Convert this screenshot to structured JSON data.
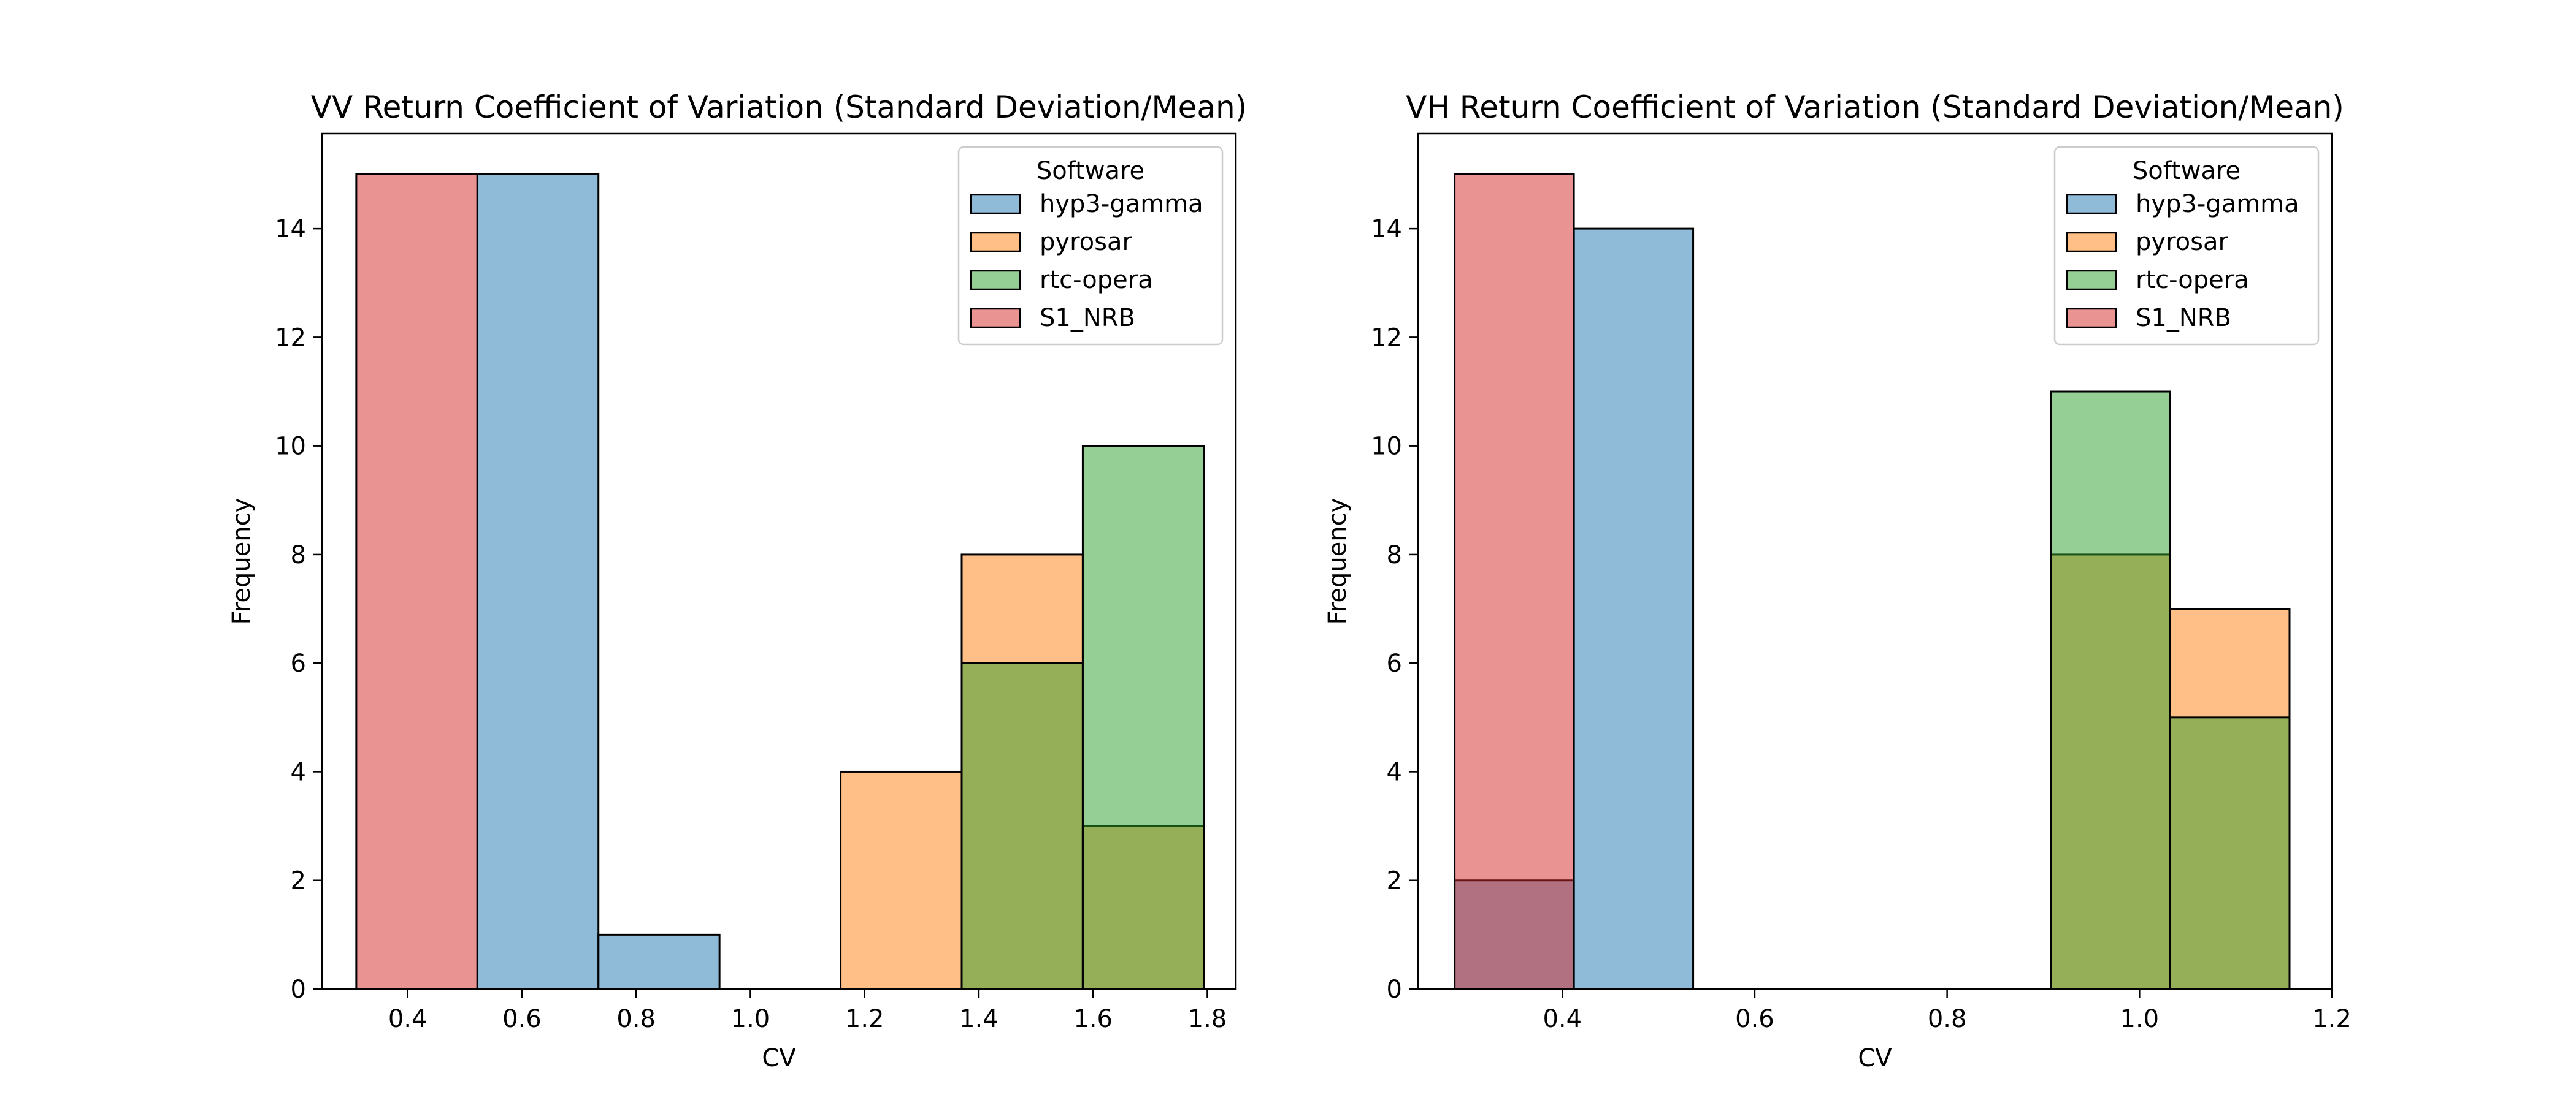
{
  "chart_data": [
    {
      "type": "histogram",
      "title": "VV Return Coefficient of Variation (Standard Deviation/Mean)",
      "xlabel": "CV",
      "ylabel": "Frequency",
      "xlim": [
        0.25,
        1.85
      ],
      "ylim": [
        0,
        15.75
      ],
      "xticks": [
        0.4,
        0.6,
        0.8,
        1.0,
        1.2,
        1.4,
        1.6,
        1.8
      ],
      "xtick_labels": [
        "0.4",
        "0.6",
        "0.8",
        "1.0",
        "1.2",
        "1.4",
        "1.6",
        "1.8"
      ],
      "yticks": [
        0,
        2,
        4,
        6,
        8,
        10,
        12,
        14
      ],
      "ytick_labels": [
        "0",
        "2",
        "4",
        "6",
        "8",
        "10",
        "12",
        "14"
      ],
      "bin_edges": [
        0.31,
        0.522,
        0.734,
        0.946,
        1.158,
        1.37,
        1.582,
        1.794
      ],
      "legend": {
        "title": "Software",
        "position": "upper right",
        "entries": [
          "hyp3-gamma",
          "pyrosar",
          "rtc-opera",
          "S1_NRB"
        ]
      },
      "series": [
        {
          "name": "hyp3-gamma",
          "color": "#1f77b4",
          "counts": [
            0,
            15,
            1,
            0,
            0,
            0,
            0
          ]
        },
        {
          "name": "pyrosar",
          "color": "#ff7f0e",
          "counts": [
            0,
            0,
            0,
            0,
            4,
            8,
            3
          ]
        },
        {
          "name": "rtc-opera",
          "color": "#2ca02c",
          "counts": [
            0,
            0,
            0,
            0,
            0,
            6,
            10
          ]
        },
        {
          "name": "S1_NRB",
          "color": "#d62728",
          "counts": [
            15,
            0,
            0,
            0,
            0,
            0,
            0
          ]
        }
      ]
    },
    {
      "type": "histogram",
      "title": "VH Return Coefficient of Variation (Standard Deviation/Mean)",
      "xlabel": "CV",
      "ylabel": "Frequency",
      "xlim": [
        0.25,
        1.2
      ],
      "ylim": [
        0,
        15.75
      ],
      "xticks": [
        0.4,
        0.6,
        0.8,
        1.0,
        1.2
      ],
      "xtick_labels": [
        "0.4",
        "0.6",
        "0.8",
        "1.0",
        "1.2"
      ],
      "yticks": [
        0,
        2,
        4,
        6,
        8,
        10,
        12,
        14
      ],
      "ytick_labels": [
        "0",
        "2",
        "4",
        "6",
        "8",
        "10",
        "12",
        "14"
      ],
      "bin_edges": [
        0.288,
        0.412,
        0.536,
        0.66,
        0.784,
        0.908,
        1.032,
        1.156
      ],
      "legend": {
        "title": "Software",
        "position": "upper right",
        "entries": [
          "hyp3-gamma",
          "pyrosar",
          "rtc-opera",
          "S1_NRB"
        ]
      },
      "series": [
        {
          "name": "hyp3-gamma",
          "color": "#1f77b4",
          "counts": [
            2,
            14,
            0,
            0,
            0,
            0,
            0
          ]
        },
        {
          "name": "pyrosar",
          "color": "#ff7f0e",
          "counts": [
            0,
            0,
            0,
            0,
            0,
            8,
            7
          ]
        },
        {
          "name": "rtc-opera",
          "color": "#2ca02c",
          "counts": [
            0,
            0,
            0,
            0,
            0,
            11,
            5
          ]
        },
        {
          "name": "S1_NRB",
          "color": "#d62728",
          "counts": [
            15,
            0,
            0,
            0,
            0,
            0,
            0
          ]
        }
      ]
    }
  ]
}
